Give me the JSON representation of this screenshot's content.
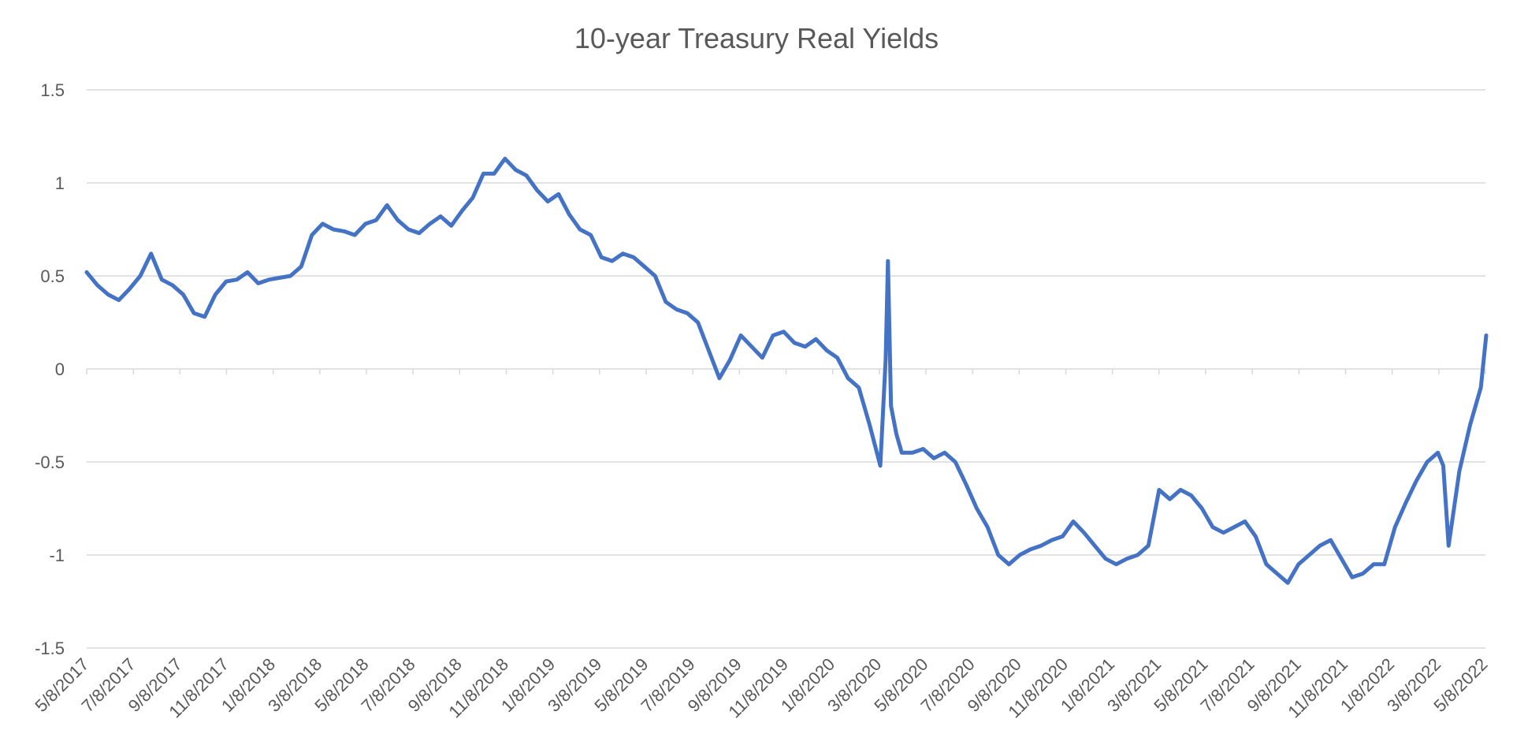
{
  "chart_data": {
    "type": "line",
    "title": "10-year Treasury Real Yields",
    "xlabel": "",
    "ylabel": "",
    "ylim": [
      -1.5,
      1.5
    ],
    "yticks": [
      1.5,
      1,
      0.5,
      0,
      -0.5,
      -1,
      -1.5
    ],
    "grid": true,
    "legend": "none",
    "line_color": "#4472C4",
    "x_tick_labels": [
      "5/8/2017",
      "7/8/2017",
      "9/8/2017",
      "11/8/2017",
      "1/8/2018",
      "3/8/2018",
      "5/8/2018",
      "7/8/2018",
      "9/8/2018",
      "11/8/2018",
      "1/8/2019",
      "3/8/2019",
      "5/8/2019",
      "7/8/2019",
      "9/8/2019",
      "11/8/2019",
      "1/8/2020",
      "3/8/2020",
      "5/8/2020",
      "7/8/2020",
      "9/8/2020",
      "11/8/2020",
      "1/8/2021",
      "3/8/2021",
      "5/8/2021",
      "7/8/2021",
      "9/8/2021",
      "11/8/2021",
      "1/8/2022",
      "3/8/2022",
      "5/8/2022"
    ],
    "series": [
      {
        "x": [
          "2017-05-08",
          "2017-05-22",
          "2017-06-05",
          "2017-06-19",
          "2017-07-03",
          "2017-07-17",
          "2017-07-31",
          "2017-08-14",
          "2017-08-28",
          "2017-09-11",
          "2017-09-25",
          "2017-10-09",
          "2017-10-23",
          "2017-11-06",
          "2017-11-20",
          "2017-12-04",
          "2017-12-18",
          "2018-01-01",
          "2018-01-15",
          "2018-01-29",
          "2018-02-12",
          "2018-02-26",
          "2018-03-12",
          "2018-03-26",
          "2018-04-09",
          "2018-04-23",
          "2018-05-07",
          "2018-05-21",
          "2018-06-04",
          "2018-06-18",
          "2018-07-02",
          "2018-07-16",
          "2018-07-30",
          "2018-08-13",
          "2018-08-27",
          "2018-09-10",
          "2018-09-24",
          "2018-10-08",
          "2018-10-22",
          "2018-11-05",
          "2018-11-19",
          "2018-12-03",
          "2018-12-17",
          "2018-12-31",
          "2019-01-14",
          "2019-01-28",
          "2019-02-11",
          "2019-02-25",
          "2019-03-11",
          "2019-03-25",
          "2019-04-08",
          "2019-04-22",
          "2019-05-06",
          "2019-05-20",
          "2019-06-03",
          "2019-06-17",
          "2019-07-01",
          "2019-07-15",
          "2019-07-29",
          "2019-08-12",
          "2019-08-26",
          "2019-09-09",
          "2019-09-23",
          "2019-10-07",
          "2019-10-21",
          "2019-11-04",
          "2019-11-18",
          "2019-12-02",
          "2019-12-16",
          "2019-12-30",
          "2020-01-13",
          "2020-01-27",
          "2020-02-10",
          "2020-02-24",
          "2020-03-09",
          "2020-03-16",
          "2020-03-19",
          "2020-03-23",
          "2020-03-30",
          "2020-04-06",
          "2020-04-20",
          "2020-05-04",
          "2020-05-18",
          "2020-06-01",
          "2020-06-15",
          "2020-06-29",
          "2020-07-13",
          "2020-07-27",
          "2020-08-10",
          "2020-08-24",
          "2020-09-07",
          "2020-09-21",
          "2020-10-05",
          "2020-10-19",
          "2020-11-02",
          "2020-11-16",
          "2020-11-30",
          "2020-12-14",
          "2020-12-28",
          "2021-01-11",
          "2021-01-25",
          "2021-02-08",
          "2021-02-22",
          "2021-03-08",
          "2021-03-22",
          "2021-04-05",
          "2021-04-19",
          "2021-05-03",
          "2021-05-17",
          "2021-05-31",
          "2021-06-14",
          "2021-06-28",
          "2021-07-12",
          "2021-07-26",
          "2021-08-09",
          "2021-08-23",
          "2021-09-06",
          "2021-09-20",
          "2021-10-04",
          "2021-10-18",
          "2021-11-01",
          "2021-11-15",
          "2021-11-29",
          "2021-12-13",
          "2021-12-27",
          "2022-01-10",
          "2022-01-24",
          "2022-02-07",
          "2022-02-21",
          "2022-03-07",
          "2022-03-14",
          "2022-03-21",
          "2022-04-04",
          "2022-04-18",
          "2022-05-02",
          "2022-05-09"
        ],
        "values": [
          0.52,
          0.45,
          0.4,
          0.37,
          0.43,
          0.5,
          0.62,
          0.48,
          0.45,
          0.4,
          0.3,
          0.28,
          0.4,
          0.47,
          0.48,
          0.52,
          0.46,
          0.48,
          0.49,
          0.5,
          0.55,
          0.72,
          0.78,
          0.75,
          0.74,
          0.72,
          0.78,
          0.8,
          0.88,
          0.8,
          0.75,
          0.73,
          0.78,
          0.82,
          0.77,
          0.85,
          0.92,
          1.05,
          1.05,
          1.13,
          1.07,
          1.04,
          0.96,
          0.9,
          0.94,
          0.83,
          0.75,
          0.72,
          0.6,
          0.58,
          0.62,
          0.6,
          0.55,
          0.5,
          0.36,
          0.32,
          0.3,
          0.25,
          0.1,
          -0.05,
          0.05,
          0.18,
          0.12,
          0.06,
          0.18,
          0.2,
          0.14,
          0.12,
          0.16,
          0.1,
          0.06,
          -0.05,
          -0.1,
          -0.3,
          -0.52,
          0.05,
          0.58,
          -0.2,
          -0.35,
          -0.45,
          -0.45,
          -0.43,
          -0.48,
          -0.45,
          -0.5,
          -0.62,
          -0.75,
          -0.85,
          -1.0,
          -1.05,
          -1.0,
          -0.97,
          -0.95,
          -0.92,
          -0.9,
          -0.82,
          -0.88,
          -0.95,
          -1.02,
          -1.05,
          -1.02,
          -1.0,
          -0.95,
          -0.65,
          -0.7,
          -0.65,
          -0.68,
          -0.75,
          -0.85,
          -0.88,
          -0.85,
          -0.82,
          -0.9,
          -1.05,
          -1.1,
          -1.15,
          -1.05,
          -1.0,
          -0.95,
          -0.92,
          -1.02,
          -1.12,
          -1.1,
          -1.05,
          -1.05,
          -0.85,
          -0.72,
          -0.6,
          -0.5,
          -0.45,
          -0.52,
          -0.95,
          -0.55,
          -0.3,
          -0.1,
          0.18
        ]
      }
    ]
  }
}
